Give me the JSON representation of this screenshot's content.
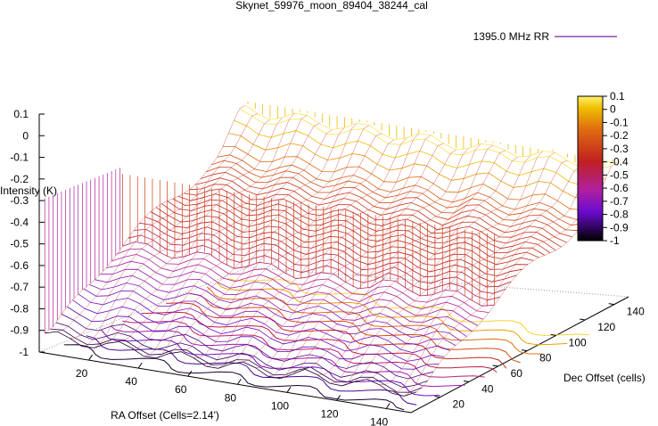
{
  "chart_data": {
    "type": "surface",
    "title": "Skynet_59976_moon_89404_38244_cal",
    "legend": {
      "label": "1395.0 MHz RR",
      "color": "#7a1fa2",
      "placement": "top-right"
    },
    "z_axis": {
      "label": "Intensity (K)",
      "range": [
        -1,
        0.1
      ],
      "ticks": [
        "0.1",
        "0",
        "-0.1",
        "-0.2",
        "-0.3",
        "-0.4",
        "-0.5",
        "-0.6",
        "-0.7",
        "-0.8",
        "-0.9",
        "-1"
      ]
    },
    "x_axis": {
      "label": "RA Offset (Cells=2.14')",
      "range": [
        0,
        150
      ],
      "ticks": [
        "20",
        "40",
        "60",
        "80",
        "100",
        "120",
        "140"
      ]
    },
    "y_axis": {
      "label": "Dec Offset (cells)",
      "range": [
        0,
        150
      ],
      "ticks": [
        "20",
        "40",
        "60",
        "80",
        "100",
        "120",
        "140"
      ]
    },
    "colorbar": {
      "range": [
        -1,
        0.1
      ],
      "ticks": [
        "0.1",
        "0",
        "-0.1",
        "-0.2",
        "-0.3",
        "-0.4",
        "-0.5",
        "-0.6",
        "-0.7",
        "-0.8",
        "-0.9",
        "-1"
      ]
    },
    "surface": {
      "description_free_rows": [
        {
          "dec": 10,
          "intensity": -0.95
        },
        {
          "dec": 30,
          "intensity": -0.75
        },
        {
          "dec": 50,
          "intensity": -0.6
        },
        {
          "dec": 70,
          "intensity": -0.48
        },
        {
          "dec": 90,
          "intensity": -0.38
        },
        {
          "dec": 110,
          "intensity": -0.3
        },
        {
          "dec": 130,
          "intensity": -0.2
        },
        {
          "dec": 145,
          "intensity": 0.05
        }
      ]
    }
  }
}
